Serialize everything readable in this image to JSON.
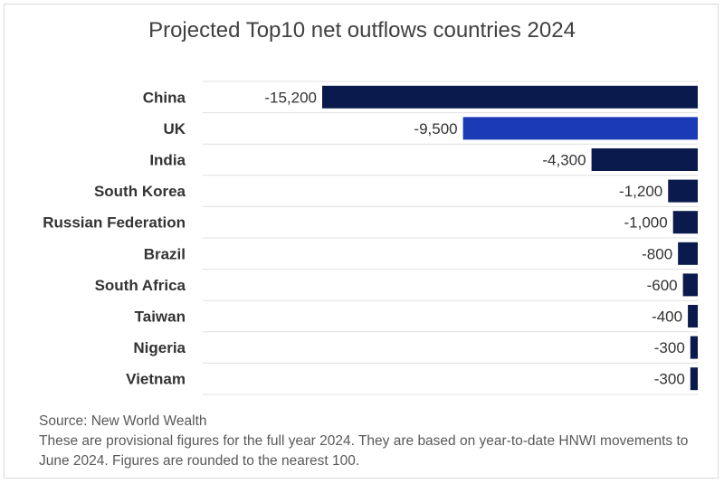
{
  "chart_data": {
    "type": "bar",
    "orientation": "horizontal",
    "title": "Projected Top10 net outflows countries 2024",
    "categories": [
      "China",
      "UK",
      "India",
      "South Korea",
      "Russian Federation",
      "Brazil",
      "South Africa",
      "Taiwan",
      "Nigeria",
      "Vietnam"
    ],
    "values": [
      -15200,
      -9500,
      -4300,
      -1200,
      -1000,
      -800,
      -600,
      -400,
      -300,
      -300
    ],
    "value_labels": [
      "-15,200",
      "-9,500",
      "-4,300",
      "-1,200",
      "-1,000",
      "-800",
      "-600",
      "-400",
      "-300",
      "-300"
    ],
    "xlim": [
      -15200,
      0
    ],
    "xlabel": "",
    "ylabel": "",
    "grid": false,
    "legend": "none",
    "colors": {
      "default": "#0a1a4d",
      "highlight": "#1a3bb5",
      "highlight_category": "UK",
      "row_divider": "#e0e0e0"
    }
  },
  "footer": {
    "source": "Source: New World Wealth",
    "notes": "These are provisional figures for the full year 2024. They are based on year-to-date HNWI movements to June 2024. Figures are rounded to the nearest 100."
  }
}
